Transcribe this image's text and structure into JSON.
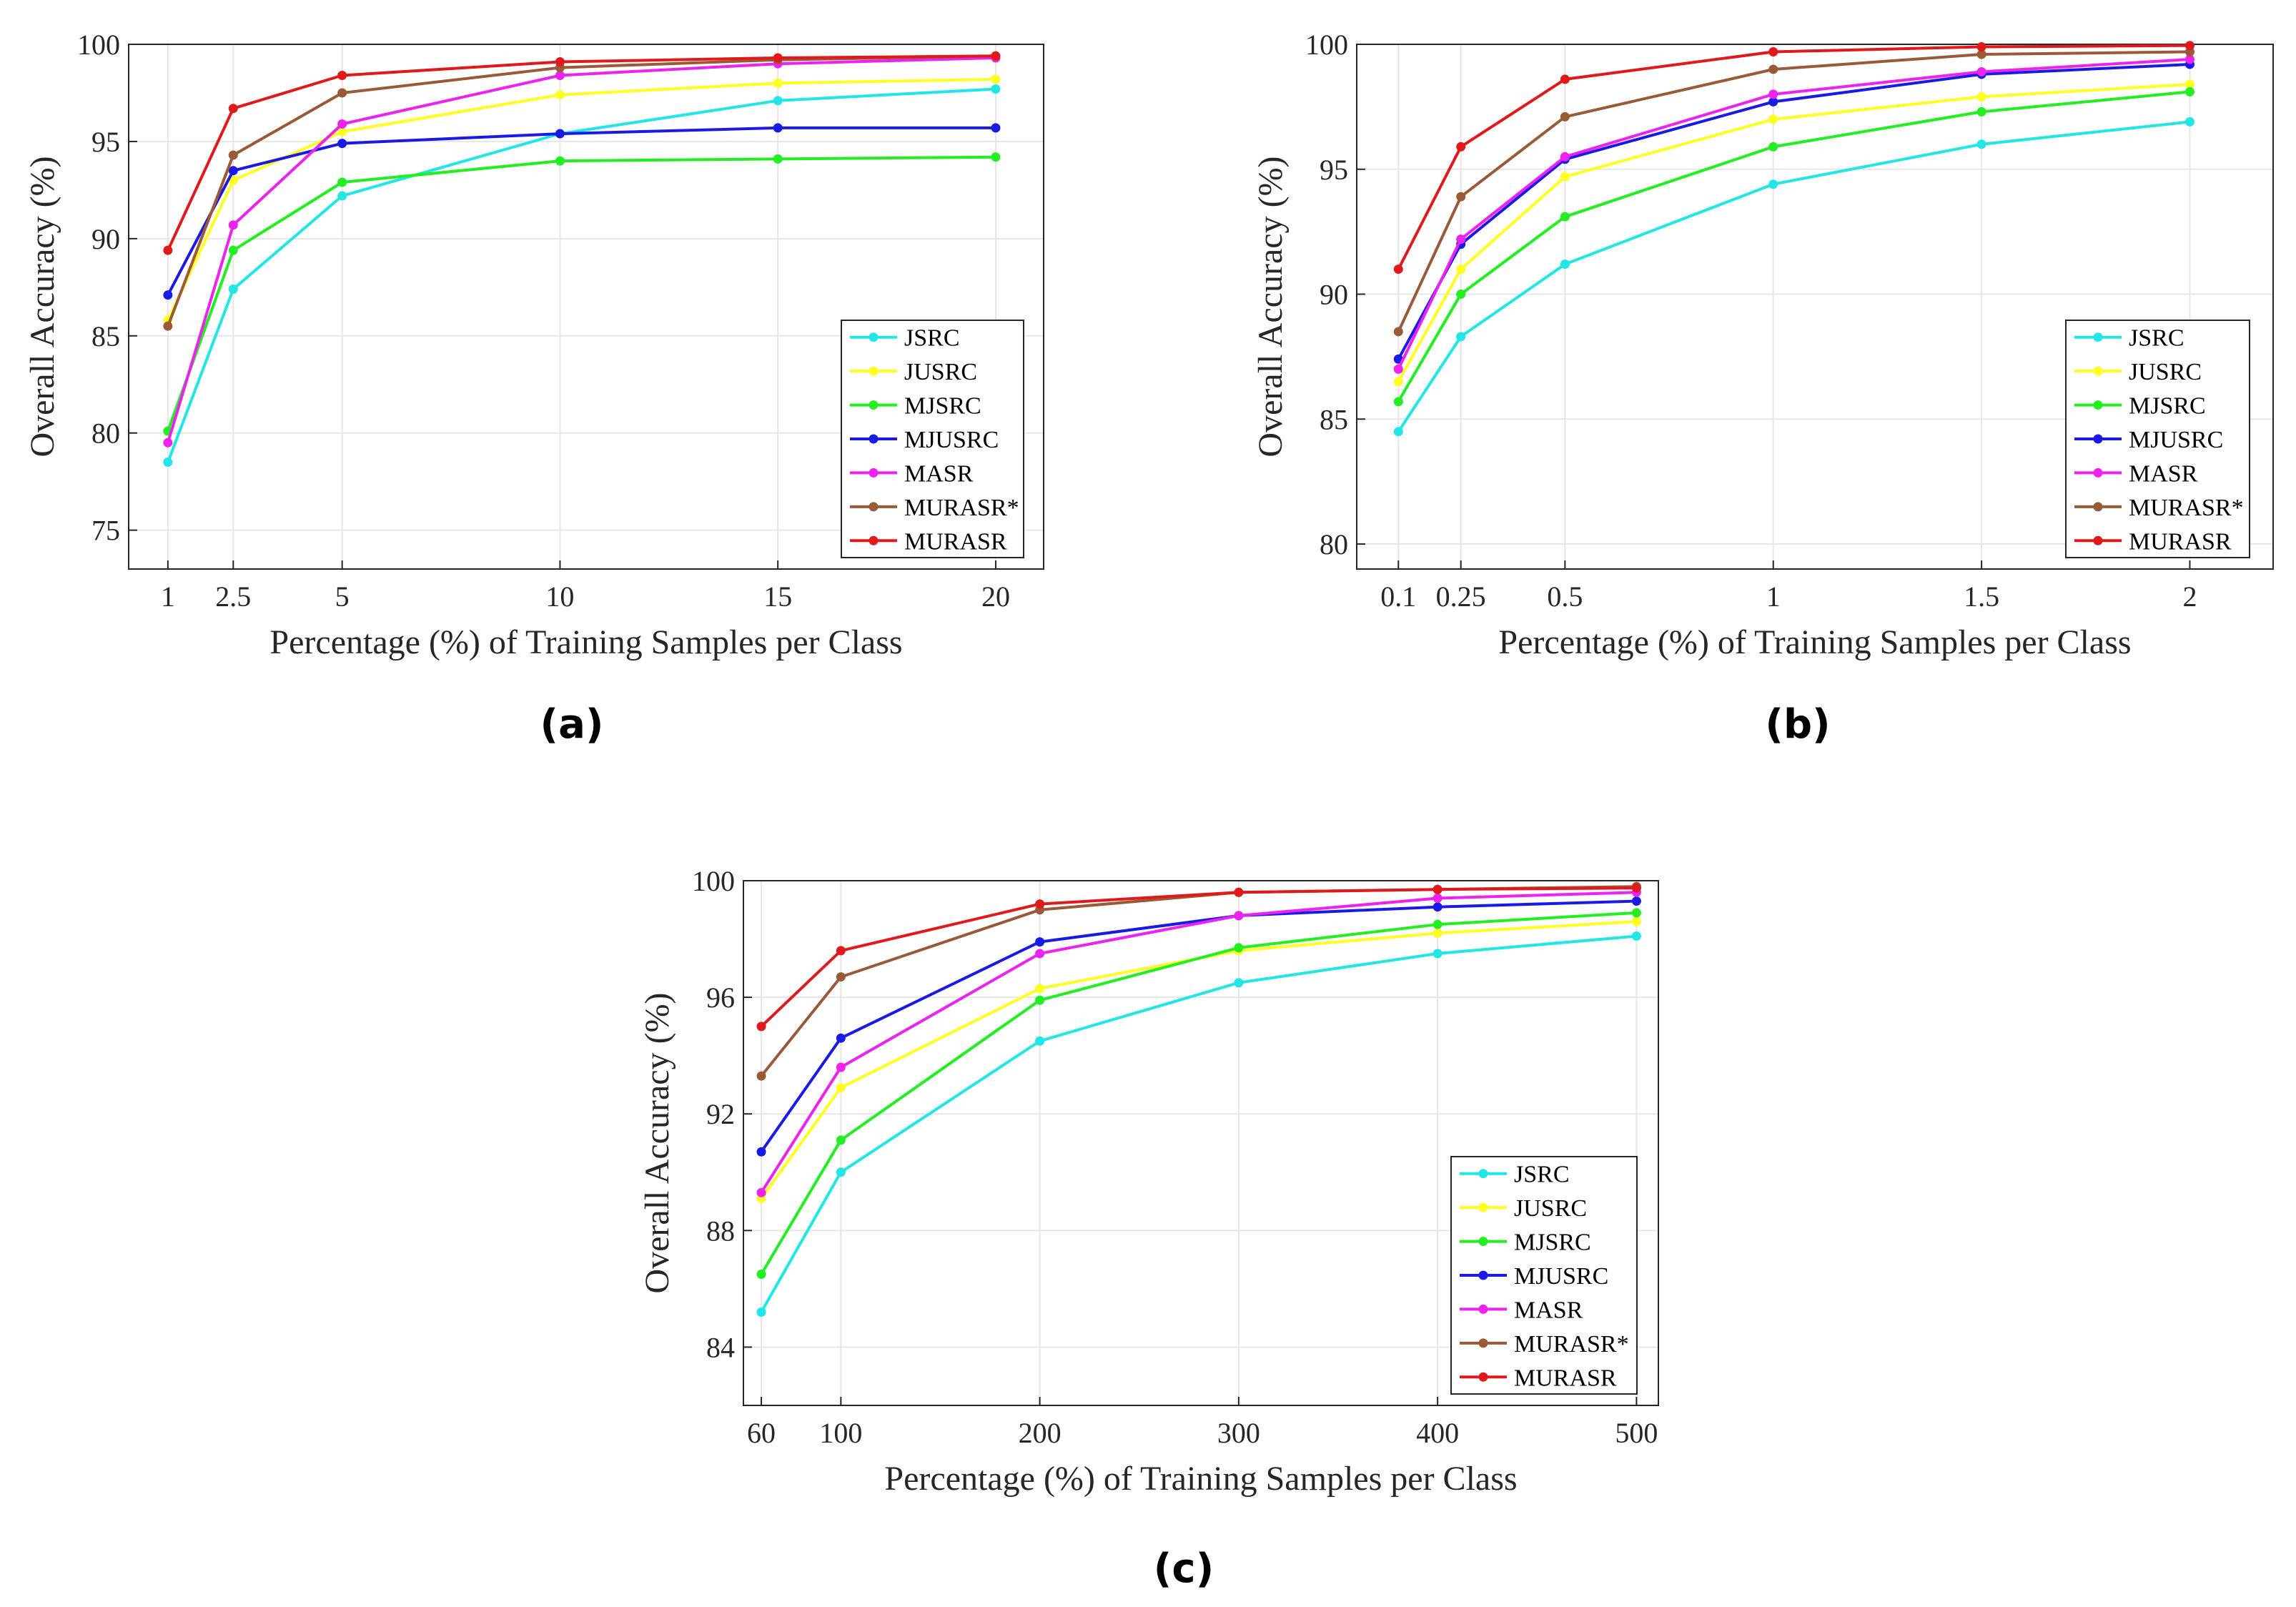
{
  "figure": {
    "panel_labels": [
      "(a)",
      "(b)",
      "(c)"
    ]
  },
  "chart_data": [
    {
      "type": "line",
      "panel": "(a)",
      "xlabel": "Percentage (%) of Training Samples per Class",
      "ylabel": "Overall Accuracy (%)",
      "x": [
        1,
        2.5,
        5,
        10,
        15,
        20
      ],
      "x_tick_labels": [
        "1",
        "2.5",
        "5",
        "10",
        "15",
        "20"
      ],
      "xlim": [
        0.1,
        21.1
      ],
      "ylim": [
        73,
        100
      ],
      "y_ticks": [
        75,
        80,
        85,
        90,
        95,
        100
      ],
      "grid": true,
      "legend_position": "bottom-right",
      "series": [
        {
          "name": "JSRC",
          "color": "#22e6e6",
          "values": [
            78.5,
            87.4,
            92.2,
            95.4,
            97.1,
            97.7
          ]
        },
        {
          "name": "JUSRC",
          "color": "#ffff22",
          "values": [
            85.8,
            93.0,
            95.5,
            97.4,
            98.0,
            98.2
          ]
        },
        {
          "name": "MJSRC",
          "color": "#22ee22",
          "values": [
            80.1,
            89.4,
            92.9,
            94.0,
            94.1,
            94.2
          ]
        },
        {
          "name": "MJUSRC",
          "color": "#1a1ae6",
          "values": [
            87.1,
            93.5,
            94.9,
            95.4,
            95.7,
            95.7
          ]
        },
        {
          "name": "MASR",
          "color": "#ee22ee",
          "values": [
            79.5,
            90.7,
            95.9,
            98.4,
            99.0,
            99.3
          ]
        },
        {
          "name": "MURASR*",
          "color": "#9b5a37",
          "values": [
            85.5,
            94.3,
            97.5,
            98.8,
            99.2,
            99.4
          ]
        },
        {
          "name": "MURASR",
          "color": "#e01a1a",
          "values": [
            89.4,
            96.7,
            98.4,
            99.1,
            99.3,
            99.4
          ]
        }
      ]
    },
    {
      "type": "line",
      "panel": "(b)",
      "xlabel": "Percentage (%) of Training Samples per Class",
      "ylabel": "Overall Accuracy (%)",
      "x": [
        0.1,
        0.25,
        0.5,
        1,
        1.5,
        2
      ],
      "x_tick_labels": [
        "0.1",
        "0.25",
        "0.5",
        "1",
        "1.5",
        "2"
      ],
      "xlim": [
        -0.0,
        2.2
      ],
      "ylim": [
        79,
        100
      ],
      "y_ticks": [
        80,
        85,
        90,
        95,
        100
      ],
      "grid": true,
      "legend_position": "bottom-right",
      "series": [
        {
          "name": "JSRC",
          "color": "#22e6e6",
          "values": [
            84.5,
            88.3,
            91.2,
            94.4,
            96.0,
            96.9
          ]
        },
        {
          "name": "JUSRC",
          "color": "#ffff22",
          "values": [
            86.5,
            91.0,
            94.7,
            97.0,
            97.9,
            98.4
          ]
        },
        {
          "name": "MJSRC",
          "color": "#22ee22",
          "values": [
            85.7,
            90.0,
            93.1,
            95.9,
            97.3,
            98.1
          ]
        },
        {
          "name": "MJUSRC",
          "color": "#1a1ae6",
          "values": [
            87.4,
            92.0,
            95.4,
            97.7,
            98.8,
            99.2
          ]
        },
        {
          "name": "MASR",
          "color": "#ee22ee",
          "values": [
            87.0,
            92.2,
            95.5,
            98.0,
            98.9,
            99.4
          ]
        },
        {
          "name": "MURASR*",
          "color": "#9b5a37",
          "values": [
            88.5,
            93.9,
            97.1,
            99.0,
            99.6,
            99.7
          ]
        },
        {
          "name": "MURASR",
          "color": "#e01a1a",
          "values": [
            91.0,
            95.9,
            98.6,
            99.7,
            99.9,
            99.95
          ]
        }
      ]
    },
    {
      "type": "line",
      "panel": "(c)",
      "xlabel": "Percentage (%) of Training Samples per Class",
      "ylabel": "Overall Accuracy (%)",
      "x": [
        60,
        100,
        200,
        300,
        400,
        500
      ],
      "x_tick_labels": [
        "60",
        "100",
        "200",
        "300",
        "400",
        "500"
      ],
      "xlim": [
        51,
        511
      ],
      "ylim": [
        82,
        100
      ],
      "y_ticks": [
        84,
        88,
        92,
        96,
        100
      ],
      "grid": true,
      "legend_position": "bottom-right",
      "series": [
        {
          "name": "JSRC",
          "color": "#22e6e6",
          "values": [
            85.2,
            90.0,
            94.5,
            96.5,
            97.5,
            98.1
          ]
        },
        {
          "name": "JUSRC",
          "color": "#ffff22",
          "values": [
            89.1,
            92.9,
            96.3,
            97.6,
            98.2,
            98.6
          ]
        },
        {
          "name": "MJSRC",
          "color": "#22ee22",
          "values": [
            86.5,
            91.1,
            95.9,
            97.7,
            98.5,
            98.9
          ]
        },
        {
          "name": "MJUSRC",
          "color": "#1a1ae6",
          "values": [
            90.7,
            94.6,
            97.9,
            98.8,
            99.1,
            99.3
          ]
        },
        {
          "name": "MASR",
          "color": "#ee22ee",
          "values": [
            89.3,
            93.6,
            97.5,
            98.8,
            99.4,
            99.6
          ]
        },
        {
          "name": "MURASR*",
          "color": "#9b5a37",
          "values": [
            93.3,
            96.7,
            99.0,
            99.6,
            99.7,
            99.8
          ]
        },
        {
          "name": "MURASR",
          "color": "#e01a1a",
          "values": [
            95.0,
            97.6,
            99.2,
            99.6,
            99.7,
            99.75
          ]
        }
      ]
    }
  ]
}
